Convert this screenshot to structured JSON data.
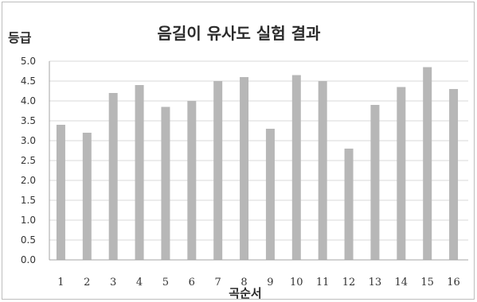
{
  "chart_data": {
    "type": "bar",
    "title": "음길이 유사도 실험 결과",
    "xlabel": "곡순서",
    "ylabel": "등급",
    "categories": [
      "1",
      "2",
      "3",
      "4",
      "5",
      "6",
      "7",
      "8",
      "9",
      "10",
      "11",
      "12",
      "13",
      "14",
      "15",
      "16"
    ],
    "values": [
      3.4,
      3.2,
      4.2,
      4.4,
      3.85,
      4.0,
      4.5,
      4.6,
      3.3,
      4.65,
      4.5,
      2.8,
      3.9,
      4.35,
      4.85,
      4.3
    ],
    "yticks": [
      "0.0",
      "0.5",
      "1.0",
      "1.5",
      "2.0",
      "2.5",
      "3.0",
      "3.5",
      "4.0",
      "4.5",
      "5.0"
    ],
    "ylim": [
      0,
      5
    ],
    "grid": true,
    "colors": {
      "bar": "#b7b7b7",
      "grid": "#d9d9d9",
      "axis": "#a6a6a6"
    }
  }
}
